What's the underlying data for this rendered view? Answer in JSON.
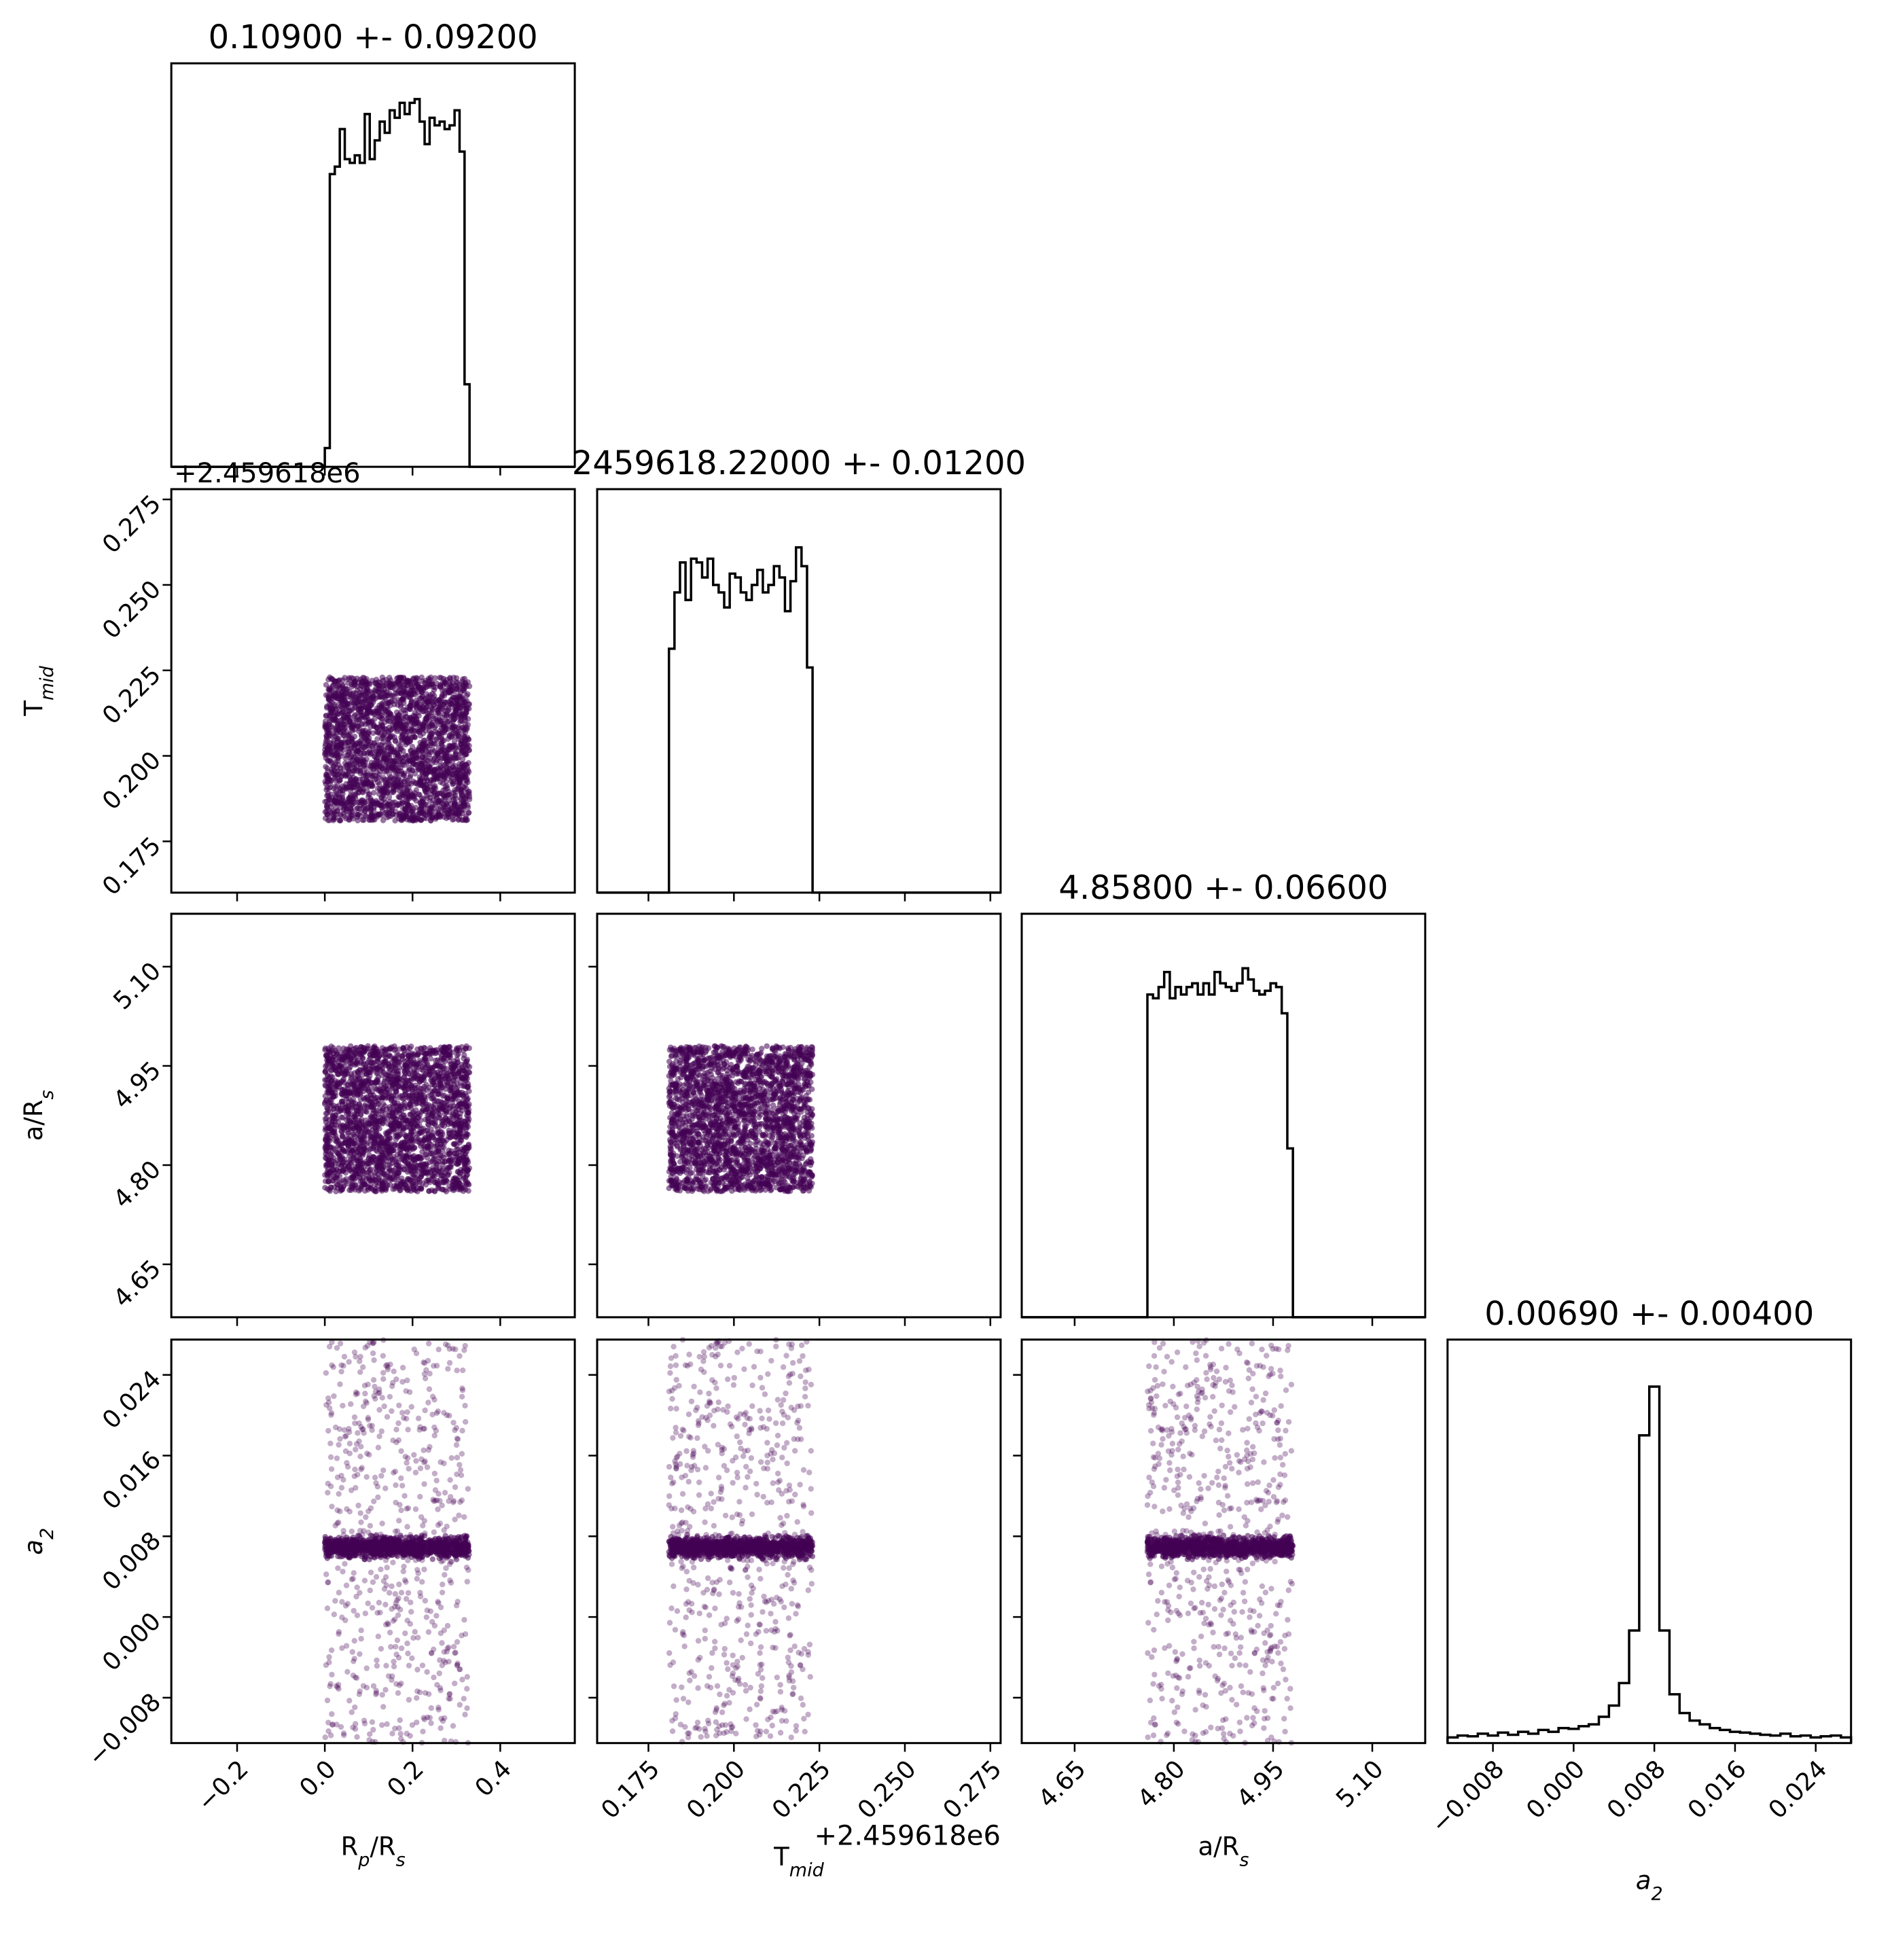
{
  "chart_data": {
    "type": "corner",
    "parameters": [
      {
        "key": "rp",
        "label": "Rp/Rs",
        "title": "0.10900 +- 0.09200",
        "ticks": [
          "−0.2",
          "0.0",
          "0.2",
          "0.4"
        ],
        "range": [
          -0.35,
          0.57
        ],
        "hist_range": [
          0.0,
          0.33
        ],
        "hist_counts": [
          0.05,
          0.78,
          0.8,
          0.9,
          0.82,
          0.81,
          0.83,
          0.81,
          0.94,
          0.82,
          0.87,
          0.92,
          0.89,
          0.95,
          0.93,
          0.97,
          0.94,
          0.97,
          0.98,
          0.92,
          0.86,
          0.93,
          0.91,
          0.92,
          0.9,
          0.91,
          0.95,
          0.84,
          0.22
        ]
      },
      {
        "key": "tmid",
        "label": "Tmid",
        "title": "2459618.22000 +- 0.01200",
        "ticks": [
          "0.175",
          "0.200",
          "0.225",
          "0.250",
          "0.275"
        ],
        "offset_text": "+2.459618e6",
        "range": [
          0.16,
          0.278
        ],
        "hist_range": [
          0.181,
          0.223
        ],
        "hist_counts": [
          0.65,
          0.8,
          0.88,
          0.78,
          0.89,
          0.88,
          0.84,
          0.89,
          0.82,
          0.8,
          0.76,
          0.85,
          0.84,
          0.8,
          0.78,
          0.82,
          0.86,
          0.8,
          0.82,
          0.87,
          0.84,
          0.75,
          0.83,
          0.92,
          0.87,
          0.6
        ]
      },
      {
        "key": "ars",
        "label": "a/Rs",
        "title": "4.85800 +- 0.06600",
        "ticks": [
          "4.65",
          "4.80",
          "4.95",
          "5.10"
        ],
        "range": [
          4.57,
          5.18
        ],
        "hist_range": [
          4.76,
          4.98
        ],
        "hist_counts": [
          0.86,
          0.85,
          0.88,
          0.92,
          0.85,
          0.88,
          0.86,
          0.88,
          0.89,
          0.86,
          0.89,
          0.86,
          0.92,
          0.89,
          0.88,
          0.87,
          0.89,
          0.93,
          0.9,
          0.87,
          0.86,
          0.87,
          0.89,
          0.88,
          0.81,
          0.45
        ]
      },
      {
        "key": "a2",
        "label": "a2",
        "title": "0.00690 +- 0.00400",
        "ticks": [
          "−0.008",
          "0.000",
          "0.008",
          "0.016",
          "0.024"
        ],
        "range": [
          -0.0125,
          0.0275
        ],
        "hist_range": [
          -0.0125,
          0.0275
        ],
        "hist_counts": [
          0.015,
          0.02,
          0.018,
          0.025,
          0.02,
          0.028,
          0.022,
          0.03,
          0.025,
          0.035,
          0.03,
          0.04,
          0.038,
          0.045,
          0.05,
          0.07,
          0.1,
          0.16,
          0.3,
          0.82,
          0.95,
          0.3,
          0.13,
          0.08,
          0.06,
          0.05,
          0.04,
          0.035,
          0.03,
          0.028,
          0.025,
          0.022,
          0.02,
          0.025,
          0.018,
          0.02,
          0.015,
          0.018,
          0.02,
          0.015
        ]
      }
    ],
    "scatter_color": "#440154"
  }
}
